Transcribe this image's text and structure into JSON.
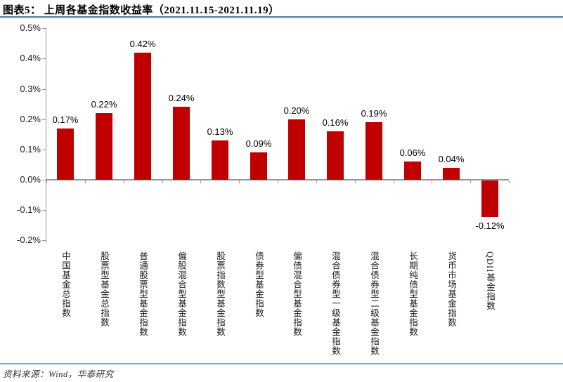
{
  "header": {
    "title": "图表5： 上周各基金指数收益率（2021.11.15-2021.11.19）"
  },
  "footer": {
    "source": "资料来源：Wind，华泰研究"
  },
  "colors": {
    "bar": "#c00000",
    "axis": "#969696",
    "rule": "#8ba4c4",
    "text": "#1a1a1a"
  },
  "chart_data": {
    "type": "bar",
    "title": "上周各基金指数收益率（2021.11.15-2021.11.19）",
    "xlabel": "",
    "ylabel": "",
    "unit": "%",
    "grid": false,
    "legend": null,
    "ylim": [
      -0.2,
      0.5
    ],
    "ytick_step": 0.1,
    "ytick_labels": [
      "0.5%",
      "0.4%",
      "0.3%",
      "0.2%",
      "0.1%",
      "0.0%",
      "-0.1%",
      "-0.2%"
    ],
    "categories": [
      "中国基金总指数",
      "股票型基金总指数",
      "普通股票型基金指数",
      "偏股混合型基金指数",
      "股票指数型基金指数",
      "债券型基金指数",
      "偏债混合型基金指数",
      "混合债券型一级基金指数",
      "混合债券型二级基金指数",
      "长期纯债型基金指数",
      "货币市场基金指数",
      "QDII基金指数"
    ],
    "values": [
      0.17,
      0.22,
      0.42,
      0.24,
      0.13,
      0.09,
      0.2,
      0.16,
      0.19,
      0.06,
      0.04,
      -0.12
    ],
    "value_labels": [
      "0.17%",
      "0.22%",
      "0.42%",
      "0.24%",
      "0.13%",
      "0.09%",
      "0.20%",
      "0.16%",
      "0.19%",
      "0.06%",
      "0.04%",
      "-0.12%"
    ]
  }
}
